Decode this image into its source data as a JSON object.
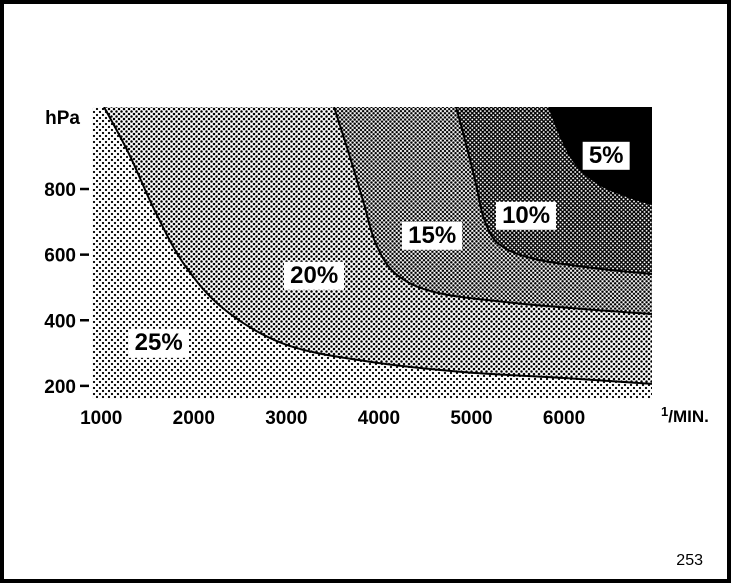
{
  "page": {
    "page_number": "253"
  },
  "chart_data": {
    "type": "contour",
    "title": "",
    "xlabel": "1/MIN.",
    "ylabel": "hPa",
    "x_unit": {
      "sup": "1",
      "rest": "/MIN."
    },
    "x_ticks": [
      1000,
      2000,
      3000,
      4000,
      5000,
      6000
    ],
    "y_ticks": [
      200,
      400,
      600,
      800
    ],
    "x_range": [
      900,
      6950
    ],
    "y_range": [
      160,
      1050
    ],
    "grid": false,
    "legend": "none",
    "regions": [
      {
        "label": "25%",
        "percent": 25,
        "shade": "lightest",
        "tone": "#dcdcdc",
        "label_at": {
          "x": 1620,
          "y": 330
        }
      },
      {
        "label": "20%",
        "percent": 20,
        "shade": "light",
        "tone": "#c4c4c4",
        "label_at": {
          "x": 3300,
          "y": 535
        }
      },
      {
        "label": "15%",
        "percent": 15,
        "shade": "medium",
        "tone": "#a9a9a9",
        "label_at": {
          "x": 4575,
          "y": 657
        }
      },
      {
        "label": "10%",
        "percent": 10,
        "shade": "dark",
        "tone": "#565656",
        "label_at": {
          "x": 5590,
          "y": 718
        }
      },
      {
        "label": "5%",
        "percent": 5,
        "shade": "black",
        "tone": "#000000",
        "label_at": {
          "x": 6455,
          "y": 901
        }
      }
    ],
    "contour_lines": [
      {
        "between": [
          "25%",
          "20%"
        ],
        "points": [
          [
            1030,
            1050
          ],
          [
            1300,
            907
          ],
          [
            1570,
            739
          ],
          [
            1894,
            571
          ],
          [
            2326,
            434
          ],
          [
            2974,
            328
          ],
          [
            3839,
            276
          ],
          [
            4919,
            242
          ],
          [
            6000,
            224
          ],
          [
            6950,
            206
          ]
        ]
      },
      {
        "between": [
          "20%",
          "15%"
        ],
        "points": [
          [
            3515,
            1050
          ],
          [
            3677,
            907
          ],
          [
            3839,
            754
          ],
          [
            3968,
            632
          ],
          [
            4184,
            541
          ],
          [
            4595,
            486
          ],
          [
            5351,
            456
          ],
          [
            6216,
            434
          ],
          [
            6950,
            419
          ]
        ]
      },
      {
        "between": [
          "15%",
          "10%"
        ],
        "points": [
          [
            4833,
            1050
          ],
          [
            4941,
            937
          ],
          [
            5049,
            815
          ],
          [
            5135,
            709
          ],
          [
            5297,
            632
          ],
          [
            5675,
            587
          ],
          [
            6324,
            559
          ],
          [
            6950,
            541
          ]
        ]
      },
      {
        "between": [
          "10%",
          "5%"
        ],
        "points": [
          [
            5838,
            1050
          ],
          [
            5978,
            952
          ],
          [
            6130,
            876
          ],
          [
            6378,
            815
          ],
          [
            6702,
            776
          ],
          [
            6950,
            754
          ]
        ]
      }
    ]
  }
}
